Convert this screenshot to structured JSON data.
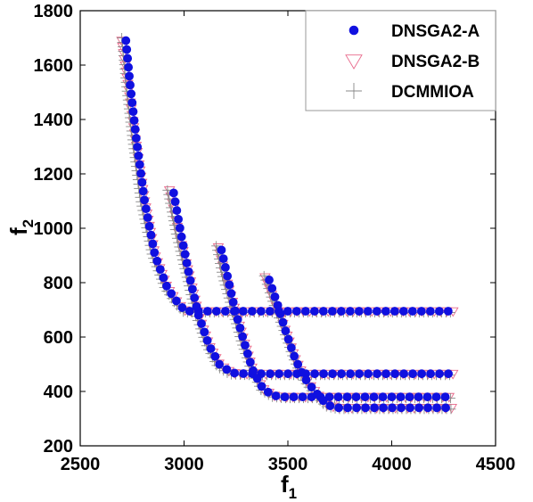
{
  "chart_data": {
    "type": "scatter",
    "xlabel": "f",
    "xlabel_sub": "1",
    "ylabel": "f",
    "ylabel_sub": "2",
    "xlim": [
      2500,
      4500
    ],
    "ylim": [
      200,
      1800
    ],
    "xticks": [
      2500,
      3000,
      3500,
      4000,
      4500
    ],
    "yticks": [
      200,
      400,
      600,
      800,
      1000,
      1200,
      1400,
      1600,
      1800
    ],
    "x_tick_labels": [
      "2500",
      "3000",
      "3500",
      "4000",
      "4500"
    ],
    "y_tick_labels": [
      "200",
      "400",
      "600",
      "800",
      "1000",
      "1200",
      "1400",
      "1600",
      "1800"
    ],
    "grid": false,
    "legend_position": "top-right",
    "series": [
      {
        "name": "DNSGA2-A",
        "marker": "filled-circle",
        "color": "#1010e0",
        "curves": [
          {
            "knots": [
              [
                2720,
                1690
              ],
              [
                2740,
                1530
              ],
              [
                2770,
                1330
              ],
              [
                2810,
                1100
              ],
              [
                2860,
                900
              ],
              [
                2920,
                780
              ],
              [
                2975,
                720
              ],
              [
                3010,
                695
              ],
              [
                3100,
                695
              ],
              [
                3500,
                695
              ],
              [
                4000,
                695
              ],
              [
                4300,
                695
              ]
            ],
            "spacing": 10
          },
          {
            "knots": [
              [
                2950,
                1130
              ],
              [
                2985,
                980
              ],
              [
                3030,
                810
              ],
              [
                3070,
                680
              ],
              [
                3120,
                570
              ],
              [
                3170,
                500
              ],
              [
                3230,
                468
              ],
              [
                3300,
                465
              ],
              [
                3700,
                465
              ],
              [
                4300,
                465
              ]
            ],
            "spacing": 10
          },
          {
            "knots": [
              [
                3180,
                920
              ],
              [
                3210,
                820
              ],
              [
                3245,
                700
              ],
              [
                3290,
                580
              ],
              [
                3330,
                480
              ],
              [
                3380,
                410
              ],
              [
                3430,
                385
              ],
              [
                3480,
                380
              ],
              [
                3900,
                380
              ],
              [
                4300,
                380
              ]
            ],
            "spacing": 10
          },
          {
            "knots": [
              [
                3410,
                810
              ],
              [
                3450,
                720
              ],
              [
                3490,
                620
              ],
              [
                3535,
                520
              ],
              [
                3580,
                450
              ],
              [
                3630,
                400
              ],
              [
                3690,
                350
              ],
              [
                3740,
                340
              ],
              [
                4000,
                340
              ],
              [
                4300,
                340
              ]
            ],
            "spacing": 10
          }
        ]
      },
      {
        "name": "DNSGA2-B",
        "marker": "open-triangle-down",
        "color": "#e8688a",
        "curves": [
          {
            "knots": [
              [
                2700,
                1690
              ],
              [
                2730,
                1530
              ],
              [
                2765,
                1330
              ],
              [
                2810,
                1100
              ],
              [
                2860,
                900
              ],
              [
                2920,
                780
              ],
              [
                2975,
                720
              ],
              [
                3010,
                695
              ],
              [
                3100,
                695
              ],
              [
                3500,
                695
              ],
              [
                4000,
                695
              ],
              [
                4300,
                695
              ]
            ],
            "spacing": 7
          },
          {
            "knots": [
              [
                2930,
                1140
              ],
              [
                2975,
                980
              ],
              [
                3030,
                810
              ],
              [
                3070,
                680
              ],
              [
                3120,
                570
              ],
              [
                3170,
                500
              ],
              [
                3230,
                468
              ],
              [
                3300,
                465
              ],
              [
                3700,
                465
              ],
              [
                4300,
                465
              ]
            ],
            "spacing": 7
          },
          {
            "knots": [
              [
                3165,
                930
              ],
              [
                3200,
                820
              ],
              [
                3245,
                700
              ],
              [
                3290,
                580
              ],
              [
                3330,
                480
              ],
              [
                3380,
                410
              ],
              [
                3430,
                385
              ],
              [
                3480,
                380
              ],
              [
                3900,
                380
              ],
              [
                4300,
                380
              ]
            ],
            "spacing": 7
          },
          {
            "knots": [
              [
                3390,
                820
              ],
              [
                3440,
                720
              ],
              [
                3490,
                620
              ],
              [
                3535,
                520
              ],
              [
                3580,
                450
              ],
              [
                3630,
                400
              ],
              [
                3690,
                350
              ],
              [
                3740,
                340
              ],
              [
                4000,
                340
              ],
              [
                4300,
                340
              ]
            ],
            "spacing": 7
          }
        ]
      },
      {
        "name": "DCMMIOA",
        "marker": "plus",
        "color": "#888888",
        "curves": [
          {
            "knots": [
              [
                2700,
                1700
              ],
              [
                2720,
                1530
              ],
              [
                2750,
                1330
              ],
              [
                2790,
                1100
              ],
              [
                2845,
                900
              ],
              [
                2905,
                780
              ],
              [
                2960,
                720
              ],
              [
                3000,
                690
              ],
              [
                3100,
                690
              ],
              [
                3500,
                690
              ],
              [
                4000,
                690
              ],
              [
                4300,
                690
              ]
            ],
            "spacing": 5
          },
          {
            "knots": [
              [
                2920,
                1140
              ],
              [
                2960,
                980
              ],
              [
                3015,
                810
              ],
              [
                3055,
                680
              ],
              [
                3105,
                570
              ],
              [
                3160,
                490
              ],
              [
                3220,
                462
              ],
              [
                3300,
                460
              ],
              [
                3700,
                460
              ],
              [
                4300,
                460
              ]
            ],
            "spacing": 5
          },
          {
            "knots": [
              [
                3155,
                935
              ],
              [
                3185,
                820
              ],
              [
                3230,
                700
              ],
              [
                3275,
                580
              ],
              [
                3320,
                480
              ],
              [
                3370,
                405
              ],
              [
                3420,
                380
              ],
              [
                3480,
                375
              ],
              [
                3900,
                375
              ],
              [
                4300,
                375
              ]
            ],
            "spacing": 5
          },
          {
            "knots": [
              [
                3385,
                825
              ],
              [
                3430,
                720
              ],
              [
                3480,
                620
              ],
              [
                3525,
                520
              ],
              [
                3570,
                445
              ],
              [
                3620,
                395
              ],
              [
                3680,
                345
              ],
              [
                3740,
                335
              ],
              [
                4000,
                335
              ],
              [
                4300,
                335
              ]
            ],
            "spacing": 5
          }
        ]
      }
    ]
  }
}
